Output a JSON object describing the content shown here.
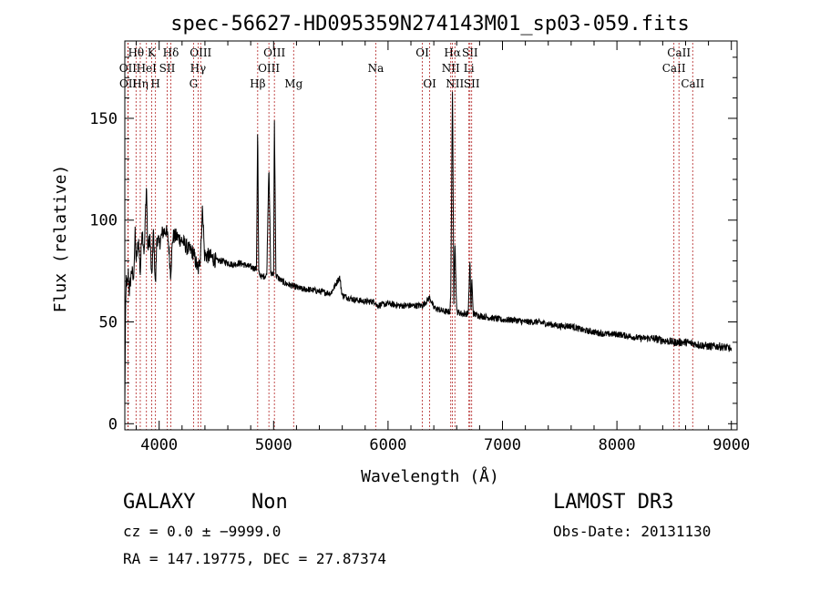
{
  "chart_data": {
    "type": "line",
    "title": "spec-56627-HD095359N274143M01_sp03-059.fits",
    "xlabel": "Wavelength (Å)",
    "ylabel": "Flux (relative)",
    "xlim": [
      3700,
      9050
    ],
    "ylim": [
      -3,
      188
    ],
    "xticks": [
      4000,
      5000,
      6000,
      7000,
      8000,
      9000
    ],
    "yticks": [
      0,
      50,
      100,
      150
    ],
    "x_tick_labels": [
      "4000",
      "5000",
      "6000",
      "7000",
      "8000",
      "9000"
    ],
    "y_tick_labels": [
      "0",
      "50",
      "100",
      "150"
    ],
    "grid": false,
    "series": [
      {
        "name": "spectrum",
        "anchors": [
          [
            3700,
            8
          ],
          [
            3705,
            45
          ],
          [
            3712,
            72
          ],
          [
            3720,
            66
          ],
          [
            3730,
            74
          ],
          [
            3740,
            65
          ],
          [
            3760,
            76
          ],
          [
            3775,
            70
          ],
          [
            3790,
            93
          ],
          [
            3800,
            80
          ],
          [
            3820,
            90
          ],
          [
            3835,
            74
          ],
          [
            3850,
            96
          ],
          [
            3870,
            84
          ],
          [
            3889,
            118
          ],
          [
            3900,
            86
          ],
          [
            3920,
            92
          ],
          [
            3935,
            70
          ],
          [
            3950,
            95
          ],
          [
            3968,
            67
          ],
          [
            3980,
            92
          ],
          [
            4000,
            88
          ],
          [
            4030,
            94
          ],
          [
            4060,
            95
          ],
          [
            4080,
            90
          ],
          [
            4100,
            74
          ],
          [
            4120,
            92
          ],
          [
            4150,
            92
          ],
          [
            4200,
            90
          ],
          [
            4250,
            86
          ],
          [
            4300,
            84
          ],
          [
            4340,
            75
          ],
          [
            4360,
            82
          ],
          [
            4380,
            107
          ],
          [
            4395,
            83
          ],
          [
            4450,
            82
          ],
          [
            4500,
            80
          ],
          [
            4550,
            80
          ],
          [
            4600,
            79
          ],
          [
            4650,
            78
          ],
          [
            4700,
            79
          ],
          [
            4750,
            78
          ],
          [
            4800,
            77
          ],
          [
            4850,
            76
          ],
          [
            4861,
            148
          ],
          [
            4870,
            74
          ],
          [
            4900,
            72
          ],
          [
            4940,
            73
          ],
          [
            4959,
            128
          ],
          [
            4975,
            74
          ],
          [
            5000,
            73
          ],
          [
            5007,
            152
          ],
          [
            5020,
            73
          ],
          [
            5050,
            71
          ],
          [
            5100,
            69
          ],
          [
            5150,
            68
          ],
          [
            5200,
            67
          ],
          [
            5250,
            66
          ],
          [
            5300,
            66
          ],
          [
            5400,
            65
          ],
          [
            5500,
            64
          ],
          [
            5577,
            72
          ],
          [
            5600,
            63
          ],
          [
            5700,
            61
          ],
          [
            5800,
            60
          ],
          [
            5890,
            60
          ],
          [
            5900,
            58
          ],
          [
            6000,
            59
          ],
          [
            6100,
            58
          ],
          [
            6200,
            58
          ],
          [
            6300,
            58
          ],
          [
            6364,
            62
          ],
          [
            6400,
            57
          ],
          [
            6450,
            56
          ],
          [
            6500,
            55
          ],
          [
            6540,
            55
          ],
          [
            6548,
            63
          ],
          [
            6563,
            165
          ],
          [
            6575,
            60
          ],
          [
            6584,
            90
          ],
          [
            6600,
            55
          ],
          [
            6650,
            54
          ],
          [
            6700,
            54
          ],
          [
            6716,
            80
          ],
          [
            6725,
            56
          ],
          [
            6731,
            72
          ],
          [
            6745,
            54
          ],
          [
            6800,
            53
          ],
          [
            6900,
            52
          ],
          [
            7000,
            51
          ],
          [
            7100,
            51
          ],
          [
            7200,
            50
          ],
          [
            7300,
            50
          ],
          [
            7400,
            49
          ],
          [
            7500,
            48
          ],
          [
            7600,
            48
          ],
          [
            7700,
            46
          ],
          [
            7800,
            45
          ],
          [
            7900,
            44
          ],
          [
            8000,
            44
          ],
          [
            8100,
            43
          ],
          [
            8200,
            42
          ],
          [
            8300,
            42
          ],
          [
            8400,
            41
          ],
          [
            8500,
            40
          ],
          [
            8600,
            40
          ],
          [
            8700,
            39
          ],
          [
            8800,
            38
          ],
          [
            8900,
            38
          ],
          [
            8990,
            37
          ],
          [
            9000,
            35
          ]
        ]
      }
    ],
    "line_labels": [
      {
        "wave": 3727,
        "label": "OII",
        "row": 2
      },
      {
        "wave": 3729,
        "label": "OII",
        "row": 3
      },
      {
        "wave": 3798,
        "label": "Hθ",
        "row": 1
      },
      {
        "wave": 3835,
        "label": "Hη",
        "row": 3
      },
      {
        "wave": 3889,
        "label": "HeI",
        "row": 2
      },
      {
        "wave": 3934,
        "label": "K",
        "row": 1
      },
      {
        "wave": 3968,
        "label": "H",
        "row": 3
      },
      {
        "wave": 4070,
        "label": "SII",
        "row": 2
      },
      {
        "wave": 4102,
        "label": "Hδ",
        "row": 1
      },
      {
        "wave": 4300,
        "label": "G",
        "row": 3
      },
      {
        "wave": 4340,
        "label": "Hγ",
        "row": 2
      },
      {
        "wave": 4363,
        "label": "OIII",
        "row": 1
      },
      {
        "wave": 4861,
        "label": "Hβ",
        "row": 3
      },
      {
        "wave": 4959,
        "label": "OIII",
        "row": 2
      },
      {
        "wave": 5007,
        "label": "OIII",
        "row": 1
      },
      {
        "wave": 5175,
        "label": "Mg",
        "row": 3
      },
      {
        "wave": 5893,
        "label": "Na",
        "row": 2
      },
      {
        "wave": 6300,
        "label": "OI",
        "row": 1
      },
      {
        "wave": 6364,
        "label": "OI",
        "row": 3
      },
      {
        "wave": 6548,
        "label": "NII",
        "row": 2
      },
      {
        "wave": 6563,
        "label": "Hα",
        "row": 1
      },
      {
        "wave": 6584,
        "label": "NII",
        "row": 3
      },
      {
        "wave": 6707,
        "label": "Li",
        "row": 2
      },
      {
        "wave": 6716,
        "label": "SII",
        "row": 1
      },
      {
        "wave": 6731,
        "label": "SII",
        "row": 3
      },
      {
        "wave": 8498,
        "label": "CaII",
        "row": 2
      },
      {
        "wave": 8542,
        "label": "CaII",
        "row": 1
      },
      {
        "wave": 8662,
        "label": "CaII",
        "row": 3
      }
    ]
  },
  "info": {
    "class_label": "GALAXY",
    "subclass_label": "Non",
    "survey": "LAMOST DR3",
    "cz_text": "cz = 0.0 ± −9999.0",
    "obs_date": "Obs-Date: 20131130",
    "coords": "RA = 147.19775, DEC =  27.87374"
  },
  "colors": {
    "spectrum": "#000000",
    "line_markers": "#b22222",
    "axes": "#000000"
  }
}
